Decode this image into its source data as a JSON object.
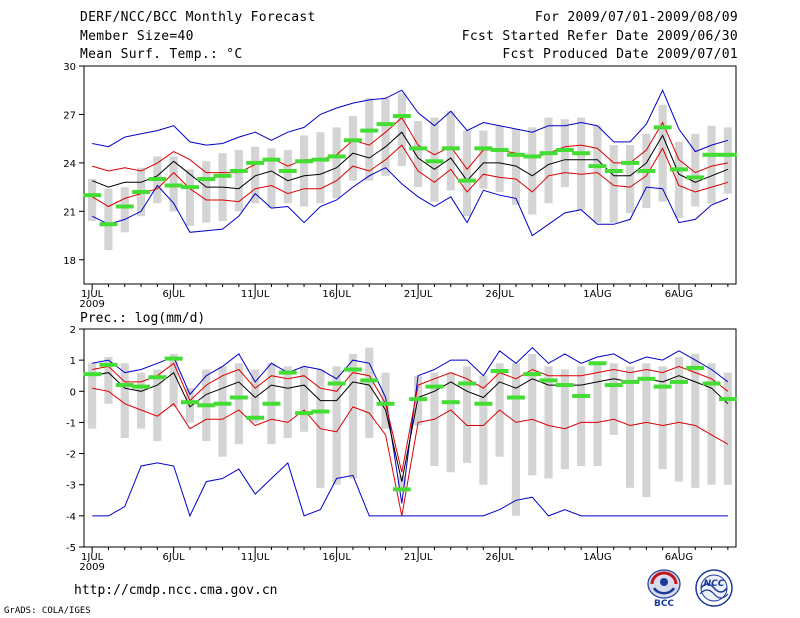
{
  "header": {
    "title": "DERF/NCC/BCC Monthly Forecast",
    "member_size": "Member Size=40",
    "variable1": "Mean Surf. Temp.: °C",
    "period": "For 2009/07/01-2009/08/09",
    "refer_date": "Fcst Started Refer Date 2009/06/30",
    "produced_date": "Fcst Produced Date 2009/07/01"
  },
  "footer": {
    "url": "http://cmdp.ncc.cma.gov.cn",
    "grads": "GrADS: COLA/IGES",
    "logo_bcc": "BCC",
    "logo_ncc": "NCC"
  },
  "colors": {
    "box": "#d4d4d4",
    "bar": "#44dd33",
    "mean": "#000000",
    "sd": "#dd0000",
    "ext": "#0000cc"
  },
  "chart_data": [
    {
      "type": "line",
      "title": "Mean Surf. Temp.: °C",
      "x_tick_labels": [
        "1JUL",
        "6JUL",
        "11JUL",
        "16JUL",
        "21JUL",
        "26JUL",
        "1AUG",
        "6AUG"
      ],
      "x_tick_days": [
        1,
        6,
        11,
        16,
        21,
        26,
        32,
        37
      ],
      "x_year_label": "2009",
      "xlim": [
        0.5,
        40.5
      ],
      "ylim": [
        16.5,
        30
      ],
      "y_ticks": [
        18,
        21,
        24,
        27,
        30
      ],
      "day": [
        1,
        2,
        3,
        4,
        5,
        6,
        7,
        8,
        9,
        10,
        11,
        12,
        13,
        14,
        15,
        16,
        17,
        18,
        19,
        20,
        21,
        22,
        23,
        24,
        25,
        26,
        27,
        28,
        29,
        30,
        31,
        32,
        33,
        34,
        35,
        36,
        37,
        38,
        39,
        40
      ],
      "series": [
        {
          "name": "max",
          "values": [
            25.2,
            25.0,
            25.6,
            25.8,
            26.0,
            26.3,
            25.3,
            25.1,
            25.2,
            25.6,
            25.9,
            25.4,
            25.9,
            26.2,
            27.0,
            27.4,
            27.7,
            27.9,
            28.0,
            28.5,
            27.1,
            26.3,
            27.2,
            26.0,
            26.5,
            26.3,
            26.1,
            25.9,
            26.3,
            26.3,
            26.5,
            26.3,
            25.3,
            25.3,
            26.4,
            28.5,
            26.1,
            24.7,
            25.1,
            25.4
          ]
        },
        {
          "name": "mean+sd",
          "values": [
            23.8,
            23.5,
            23.7,
            23.5,
            24.0,
            24.7,
            24.2,
            23.4,
            23.4,
            23.4,
            23.9,
            24.3,
            23.8,
            24.2,
            24.2,
            24.5,
            25.4,
            25.1,
            25.9,
            26.8,
            25.1,
            24.5,
            25.0,
            23.6,
            24.8,
            24.8,
            24.6,
            24.3,
            24.6,
            25.0,
            25.1,
            24.9,
            24.0,
            24.0,
            24.8,
            26.5,
            24.2,
            23.4,
            23.8,
            24.0
          ]
        },
        {
          "name": "mean",
          "values": [
            22.9,
            22.5,
            22.8,
            22.8,
            23.2,
            24.1,
            23.3,
            22.5,
            22.5,
            22.4,
            23.2,
            23.5,
            22.9,
            23.2,
            23.3,
            23.7,
            24.6,
            24.3,
            25.0,
            25.9,
            24.3,
            23.6,
            24.3,
            22.9,
            24.0,
            24.0,
            23.8,
            23.2,
            23.9,
            24.2,
            24.2,
            24.2,
            23.2,
            23.2,
            24.0,
            25.7,
            23.3,
            22.8,
            23.2,
            23.6
          ]
        },
        {
          "name": "mean-sd",
          "values": [
            21.9,
            21.3,
            21.8,
            22.1,
            22.4,
            23.4,
            22.4,
            21.7,
            21.7,
            21.6,
            22.4,
            22.6,
            22.1,
            22.4,
            22.4,
            22.9,
            23.8,
            23.5,
            24.2,
            25.1,
            23.5,
            22.8,
            23.6,
            22.2,
            23.3,
            23.1,
            23.0,
            22.2,
            23.2,
            23.4,
            23.3,
            23.4,
            22.6,
            22.5,
            23.2,
            24.9,
            22.6,
            22.2,
            22.5,
            22.8
          ]
        },
        {
          "name": "min",
          "values": [
            20.7,
            20.2,
            20.5,
            21.0,
            22.6,
            21.5,
            19.7,
            19.8,
            19.9,
            20.7,
            22.1,
            21.2,
            21.3,
            20.3,
            21.3,
            21.7,
            22.5,
            23.2,
            23.7,
            22.7,
            21.9,
            21.3,
            21.9,
            20.3,
            22.3,
            22.0,
            21.8,
            19.5,
            20.2,
            20.9,
            21.1,
            20.2,
            20.2,
            20.5,
            22.5,
            22.4,
            20.3,
            20.5,
            21.4,
            21.8
          ]
        },
        {
          "name": "box_low",
          "values": [
            20.4,
            18.6,
            19.7,
            20.7,
            21.5,
            21.0,
            20.1,
            20.3,
            20.4,
            21.0,
            21.5,
            21.2,
            21.5,
            21.3,
            21.5,
            21.8,
            22.9,
            22.9,
            23.2,
            23.8,
            22.5,
            21.6,
            22.3,
            20.7,
            22.4,
            22.2,
            21.4,
            20.8,
            21.5,
            22.5,
            21.1,
            20.3,
            20.3,
            20.9,
            21.2,
            21.6,
            20.6,
            21.3,
            21.5,
            22.1
          ]
        },
        {
          "name": "box_high",
          "values": [
            23.0,
            22.4,
            22.5,
            23.7,
            24.4,
            24.4,
            23.6,
            24.1,
            24.6,
            24.8,
            25.0,
            24.9,
            24.8,
            25.7,
            25.9,
            26.2,
            26.9,
            28.0,
            28.0,
            28.3,
            26.6,
            26.8,
            27.2,
            26.0,
            26.0,
            26.3,
            26.1,
            26.2,
            26.8,
            26.7,
            26.8,
            26.3,
            25.1,
            25.1,
            25.8,
            27.6,
            25.3,
            25.8,
            26.3,
            26.2
          ]
        },
        {
          "name": "observed",
          "values": [
            22.0,
            20.2,
            21.3,
            22.2,
            23.0,
            22.6,
            22.5,
            23.0,
            23.2,
            23.5,
            24.0,
            24.2,
            23.5,
            24.1,
            24.2,
            24.4,
            25.4,
            26.0,
            26.4,
            26.9,
            24.9,
            24.1,
            24.9,
            22.9,
            24.9,
            24.8,
            24.5,
            24.4,
            24.6,
            24.8,
            24.6,
            23.8,
            23.5,
            24.0,
            23.5,
            26.2,
            23.6,
            23.1,
            24.5,
            24.5
          ]
        }
      ]
    },
    {
      "type": "line",
      "title": "Prec.: log(mm/d)",
      "x_tick_labels": [
        "1JUL",
        "6JUL",
        "11JUL",
        "16JUL",
        "21JUL",
        "26JUL",
        "1AUG",
        "6AUG"
      ],
      "x_tick_days": [
        1,
        6,
        11,
        16,
        21,
        26,
        32,
        37
      ],
      "x_year_label": "2009",
      "xlim": [
        0.5,
        40.5
      ],
      "ylim": [
        -5,
        2
      ],
      "y_ticks": [
        -5,
        -4,
        -3,
        -2,
        -1,
        0,
        1,
        2
      ],
      "day": [
        1,
        2,
        3,
        4,
        5,
        6,
        7,
        8,
        9,
        10,
        11,
        12,
        13,
        14,
        15,
        16,
        17,
        18,
        19,
        20,
        21,
        22,
        23,
        24,
        25,
        26,
        27,
        28,
        29,
        30,
        31,
        32,
        33,
        34,
        35,
        36,
        37,
        38,
        39,
        40
      ],
      "series": [
        {
          "name": "max",
          "values": [
            0.9,
            1.0,
            0.6,
            0.7,
            0.9,
            1.1,
            -0.1,
            0.5,
            0.8,
            1.2,
            0.3,
            0.9,
            0.6,
            0.8,
            0.7,
            0.4,
            1.0,
            0.9,
            -0.2,
            -3.6,
            0.5,
            0.7,
            1.0,
            1.0,
            0.5,
            1.3,
            0.9,
            1.4,
            0.9,
            1.2,
            0.9,
            1.1,
            1.2,
            0.9,
            1.1,
            1.0,
            1.3,
            1.0,
            0.7,
            0.3
          ]
        },
        {
          "name": "mean+sd",
          "values": [
            0.7,
            0.8,
            0.3,
            0.3,
            0.5,
            0.9,
            -0.3,
            0.2,
            0.5,
            0.7,
            0.1,
            0.5,
            0.4,
            0.5,
            0.1,
            0.0,
            0.6,
            0.5,
            -0.4,
            -2.6,
            0.2,
            0.4,
            0.6,
            0.4,
            0.1,
            0.6,
            0.4,
            0.7,
            0.5,
            0.5,
            0.5,
            0.6,
            0.7,
            0.6,
            0.7,
            0.6,
            0.8,
            0.6,
            0.4,
            0.0
          ]
        },
        {
          "name": "mean",
          "values": [
            0.5,
            0.6,
            0.1,
            0.0,
            0.2,
            0.6,
            -0.5,
            -0.1,
            0.1,
            0.3,
            -0.2,
            0.2,
            0.1,
            0.2,
            -0.3,
            -0.3,
            0.3,
            0.2,
            -0.6,
            -2.9,
            -0.2,
            0.0,
            0.3,
            0.0,
            -0.2,
            0.3,
            0.1,
            0.4,
            0.2,
            0.2,
            0.2,
            0.3,
            0.4,
            0.3,
            0.4,
            0.3,
            0.5,
            0.3,
            0.1,
            -0.4
          ]
        },
        {
          "name": "mean-sd",
          "values": [
            0.1,
            0.0,
            -0.4,
            -0.6,
            -0.8,
            -0.4,
            -1.2,
            -0.9,
            -0.9,
            -0.6,
            -1.1,
            -0.9,
            -1.0,
            -0.6,
            -1.2,
            -1.3,
            -0.5,
            -0.7,
            -1.4,
            -4.0,
            -1.0,
            -0.9,
            -0.6,
            -1.1,
            -1.1,
            -0.6,
            -1.0,
            -0.9,
            -1.1,
            -1.2,
            -1.0,
            -1.0,
            -0.9,
            -1.1,
            -1.0,
            -1.1,
            -1.0,
            -1.1,
            -1.4,
            -1.7
          ]
        },
        {
          "name": "min",
          "values": [
            -4.0,
            -4.0,
            -3.7,
            -2.4,
            -2.3,
            -2.4,
            -4.0,
            -2.9,
            -2.8,
            -2.5,
            -3.3,
            -2.8,
            -2.3,
            -4.0,
            -3.8,
            -2.8,
            -2.7,
            -4.0,
            -4.0,
            -4.0,
            -4.0,
            -4.0,
            -4.0,
            -4.0,
            -4.0,
            -3.8,
            -3.5,
            -3.4,
            -4.0,
            -3.8,
            -4.0,
            -4.0,
            -4.0,
            -4.0,
            -4.0,
            -4.0,
            -4.0,
            -4.0,
            -4.0,
            -4.0
          ]
        },
        {
          "name": "box_low",
          "values": [
            -1.2,
            -0.4,
            -1.5,
            -1.2,
            -1.6,
            -0.5,
            -1.0,
            -1.6,
            -2.1,
            -1.7,
            -1.0,
            -1.7,
            -1.5,
            -1.3,
            -3.1,
            -3.0,
            -2.8,
            -1.5,
            -1.2,
            -3.1,
            -1.1,
            -2.4,
            -2.6,
            -2.3,
            -3.0,
            -2.1,
            -4.0,
            -2.7,
            -2.8,
            -2.5,
            -2.4,
            -2.4,
            -1.4,
            -3.1,
            -3.4,
            -2.5,
            -2.9,
            -3.1,
            -3.0,
            -3.0
          ]
        },
        {
          "name": "box_high",
          "values": [
            0.9,
            1.1,
            0.9,
            0.6,
            0.7,
            1.2,
            0.1,
            0.7,
            0.8,
            0.9,
            0.7,
            0.9,
            0.8,
            0.8,
            0.7,
            0.8,
            1.2,
            1.4,
            0.6,
            -2.7,
            0.5,
            0.6,
            0.6,
            0.8,
            0.5,
            0.9,
            0.9,
            1.2,
            0.8,
            0.7,
            0.8,
            0.9,
            0.9,
            0.8,
            0.9,
            0.8,
            1.1,
            1.2,
            0.9,
            0.6
          ]
        },
        {
          "name": "observed",
          "values": [
            0.55,
            0.85,
            0.2,
            0.15,
            0.45,
            1.05,
            -0.35,
            -0.45,
            -0.4,
            -0.2,
            -0.85,
            -0.4,
            0.6,
            -0.7,
            -0.65,
            0.25,
            0.7,
            0.35,
            -0.4,
            -3.15,
            -0.25,
            0.15,
            -0.35,
            0.25,
            -0.4,
            0.65,
            -0.2,
            0.55,
            0.35,
            0.2,
            -0.15,
            0.9,
            0.2,
            0.3,
            0.4,
            0.15,
            0.3,
            0.75,
            0.25,
            -0.25
          ]
        }
      ]
    }
  ]
}
